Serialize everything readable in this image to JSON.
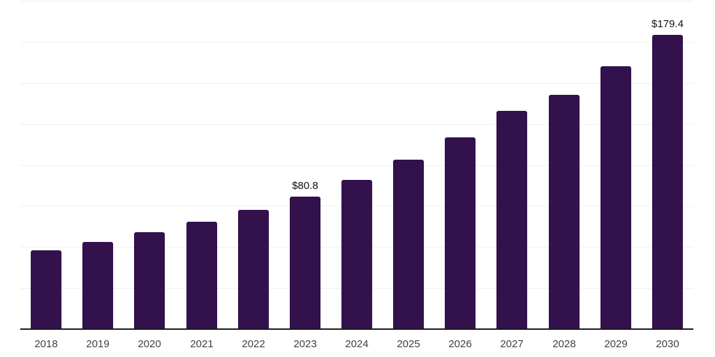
{
  "chart_data": {
    "type": "bar",
    "title": "",
    "categories": [
      "2018",
      "2019",
      "2020",
      "2021",
      "2022",
      "2023",
      "2024",
      "2025",
      "2026",
      "2027",
      "2028",
      "2029",
      "2030"
    ],
    "values": [
      48.0,
      53.0,
      59.1,
      65.3,
      72.6,
      80.8,
      91.0,
      103.0,
      116.6,
      132.9,
      142.8,
      160.2,
      179.4
    ],
    "data_labels": [
      "",
      "",
      "",
      "",
      "",
      "$80.8",
      "",
      "",
      "",
      "",
      "",
      "",
      "$179.4"
    ],
    "xlabel": "",
    "ylabel": "",
    "ylim": [
      0,
      200
    ],
    "gridline_step": 25,
    "grid": true,
    "y_axis_labels_visible": false,
    "legend": "none",
    "colors": {
      "bar": "#33114d",
      "axis": "#1a1a1a",
      "gridline": "#f0f0f0",
      "background": "#ffffff",
      "tick_label": "#404040",
      "value_label": "#111111"
    }
  }
}
